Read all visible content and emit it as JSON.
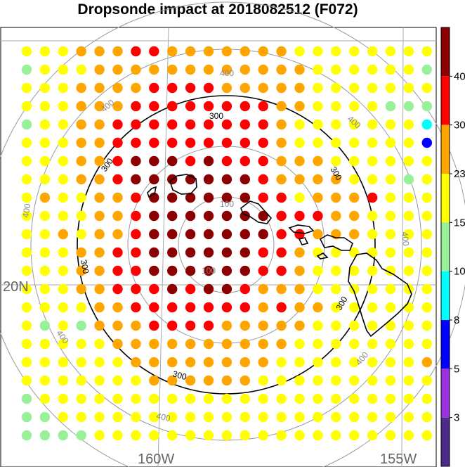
{
  "title": "Dropsonde impact at 2018082512 (F072)",
  "axis_labels": {
    "lat": "20N",
    "lon_west": "160W",
    "lon_east": "155W"
  },
  "range_rings": [
    {
      "label": "100",
      "emphasis": false
    },
    {
      "label": "300",
      "emphasis": true
    },
    {
      "label": "400",
      "emphasis": false
    }
  ],
  "colorbar": {
    "labels": [
      "40",
      "30",
      "23",
      "15",
      "10",
      "8",
      "5",
      "3"
    ],
    "colors": [
      "#4b2a8a",
      "#9b30e0",
      "#0000ff",
      "#00ffff",
      "#98f098",
      "#ffff00",
      "#ffa500",
      "#ff0000",
      "#8b0000"
    ]
  },
  "chart_data": {
    "type": "scatter",
    "description_values": "impact category per grid cell (0=dark purple .. 8=dark red)",
    "category_colors": [
      "#4b2a8a",
      "#9b30e0",
      "#0000ff",
      "#00ffff",
      "#98f098",
      "#ffff00",
      "#ffa500",
      "#ff0000",
      "#8b0000"
    ],
    "rows": [
      "55566677666666655555555",
      "45556666666666665555554",
      "55566667777666665555555",
      "55566677777777665555444",
      "45566777777777655555553",
      "55566777777777655555552",
      "55566788878777666555555",
      "55566788888887666655545",
      "56556678888887756667555",
      "55556678888888777665555",
      "55656678888888776665555",
      "55566778888887765555555",
      "55566778888887765555555",
      "55566777878876665555555",
      "55556677777776766555555",
      "54546667777666665555555",
      "55555666666666655555555",
      "55555566666666555555556",
      "55555556666665555555555",
      "45555555555555555555555",
      "44555555555555555555555",
      "44445555555555555555555"
    ]
  }
}
